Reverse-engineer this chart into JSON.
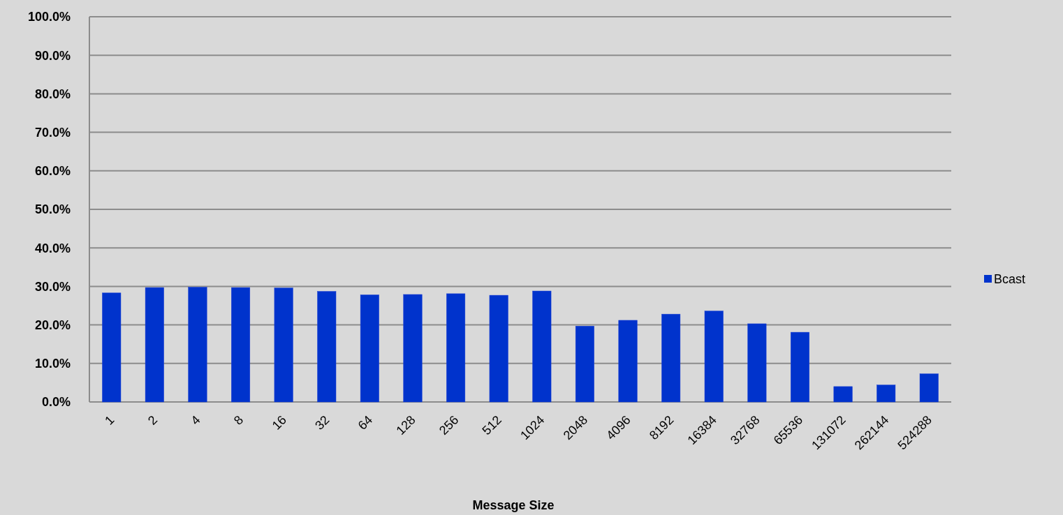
{
  "chart_data": {
    "type": "bar",
    "xlabel": "Message Size",
    "categories": [
      "1",
      "2",
      "4",
      "8",
      "16",
      "32",
      "64",
      "128",
      "256",
      "512",
      "1024",
      "2048",
      "4096",
      "8192",
      "16384",
      "32768",
      "65536",
      "131072",
      "262144",
      "524288"
    ],
    "series": [
      {
        "name": "Bcast",
        "color": "#0033cc",
        "values": [
          28.3,
          29.7,
          29.8,
          29.7,
          29.6,
          28.7,
          27.8,
          27.9,
          28.1,
          27.7,
          28.8,
          19.7,
          21.2,
          22.8,
          23.6,
          20.3,
          18.1,
          4.0,
          4.4,
          7.3
        ]
      }
    ],
    "ylim": [
      0,
      100
    ],
    "yticks": [
      {
        "value": 0,
        "label": "0.0%"
      },
      {
        "value": 10,
        "label": "10.0%"
      },
      {
        "value": 20,
        "label": "20.0%"
      },
      {
        "value": 30,
        "label": "30.0%"
      },
      {
        "value": 40,
        "label": "40.0%"
      },
      {
        "value": 50,
        "label": "50.0%"
      },
      {
        "value": 60,
        "label": "60.0%"
      },
      {
        "value": 70,
        "label": "70.0%"
      },
      {
        "value": 80,
        "label": "80.0%"
      },
      {
        "value": 90,
        "label": "90.0%"
      },
      {
        "value": 100,
        "label": "100.0%"
      }
    ],
    "grid": "y",
    "legend": "right"
  }
}
